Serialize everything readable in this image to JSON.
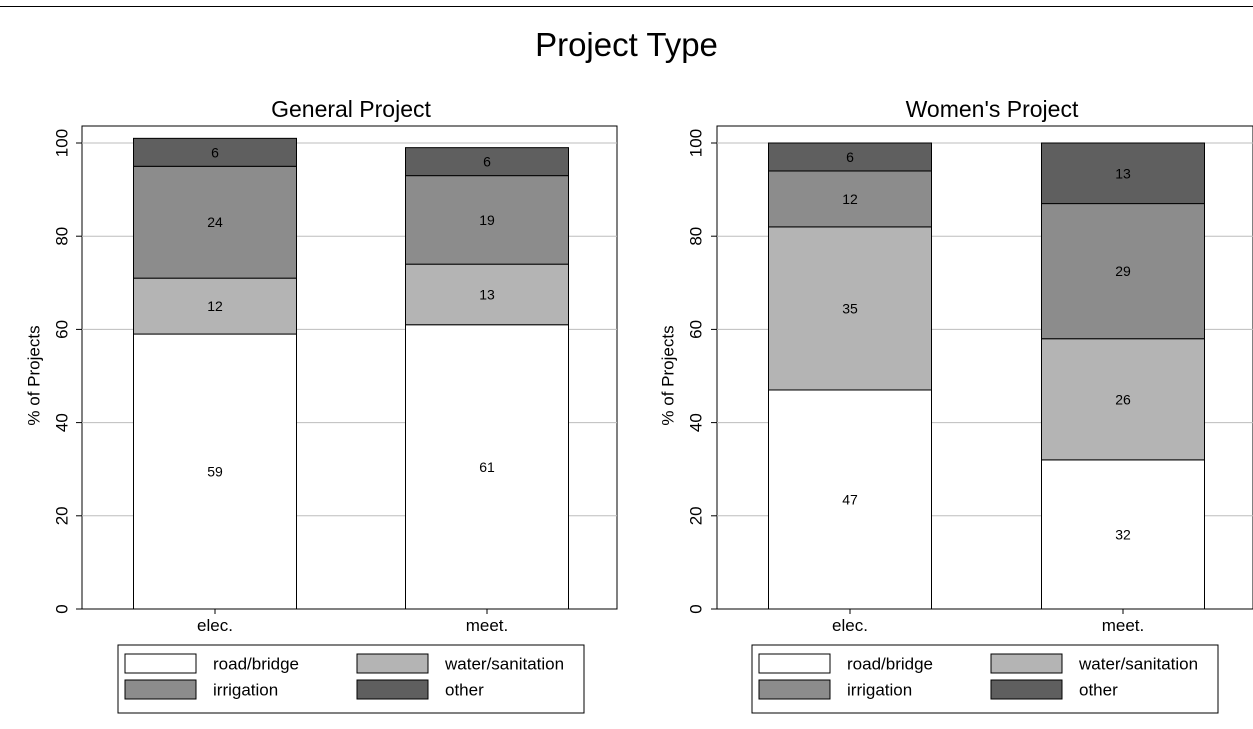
{
  "figure": {
    "title": "Project Type"
  },
  "chart_data": [
    {
      "type": "bar",
      "stacked": true,
      "title": "General Project",
      "xlabel": "",
      "ylabel": "% of Projects",
      "ylim": [
        0,
        100
      ],
      "yticks": [
        "0",
        "20",
        "40",
        "60",
        "80",
        "100"
      ],
      "categories": [
        "elec.",
        "meet."
      ],
      "grid": true,
      "legend_position": "bottom",
      "series": [
        {
          "name": "road/bridge",
          "values": [
            59,
            61
          ],
          "color": "#ffffff"
        },
        {
          "name": "water/sanitation",
          "values": [
            12,
            13
          ],
          "color": "#b4b4b4"
        },
        {
          "name": "irrigation",
          "values": [
            24,
            19
          ],
          "color": "#8c8c8c"
        },
        {
          "name": "other",
          "values": [
            6,
            6
          ],
          "color": "#5f5f5f"
        }
      ]
    },
    {
      "type": "bar",
      "stacked": true,
      "title": "Women's Project",
      "xlabel": "",
      "ylabel": "% of Projects",
      "ylim": [
        0,
        100
      ],
      "yticks": [
        "0",
        "20",
        "40",
        "60",
        "80",
        "100"
      ],
      "categories": [
        "elec.",
        "meet."
      ],
      "grid": true,
      "legend_position": "bottom",
      "series": [
        {
          "name": "road/bridge",
          "values": [
            47,
            32
          ],
          "color": "#ffffff"
        },
        {
          "name": "water/sanitation",
          "values": [
            35,
            26
          ],
          "color": "#b4b4b4"
        },
        {
          "name": "irrigation",
          "values": [
            12,
            29
          ],
          "color": "#8c8c8c"
        },
        {
          "name": "other",
          "values": [
            6,
            13
          ],
          "color": "#5f5f5f"
        }
      ]
    }
  ]
}
